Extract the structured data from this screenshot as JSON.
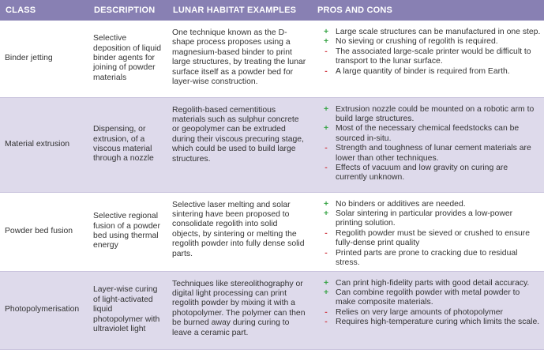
{
  "table": {
    "header": [
      "CLASS",
      "DESCRIPTION",
      "LUNAR HABITAT EXAMPLES",
      "PROS AND CONS"
    ],
    "rows": [
      {
        "class": "Binder jetting",
        "description": "Selective deposition of liquid binder agents for joining of powder materials",
        "examples": "One technique known as the D-shape process proposes using a magnesium-based binder to print large structures, by treating the lunar surface itself as a powder bed for layer-wise construction.",
        "pros_cons": [
          {
            "sign": "+",
            "text": "Large scale structures can be manufactured in one step."
          },
          {
            "sign": "+",
            "text": "No sieving or crushing of regolith is required."
          },
          {
            "sign": "-",
            "text": "The associated large-scale printer would be difficult to transport to the lunar surface."
          },
          {
            "sign": "-",
            "text": "A large quantity of binder is required from Earth."
          }
        ]
      },
      {
        "class": "Material extrusion",
        "description": "Dispensing, or extrusion, of a viscous material through a nozzle",
        "examples": "Regolith-based cementitious materials such as sulphur concrete or geopolymer can be extruded during their viscous precuring stage, which could be used to build large structures.",
        "pros_cons": [
          {
            "sign": "+",
            "text": "Extrusion nozzle could be mounted on a robotic arm to build large structures."
          },
          {
            "sign": "+",
            "text": "Most of the necessary chemical feedstocks can be sourced in-situ."
          },
          {
            "sign": "-",
            "text": "Strength and toughness of lunar cement materials are lower than other techniques."
          },
          {
            "sign": "-",
            "text": "Effects of vacuum and low gravity on curing are currently unknown."
          }
        ]
      },
      {
        "class": "Powder bed fusion",
        "description": "Selective regional fusion of a powder bed using thermal energy",
        "examples": "Selective laser melting and solar sintering have been proposed to consolidate regolith into solid objects, by sintering or melting the regolith powder into fully dense solid parts.",
        "pros_cons": [
          {
            "sign": "+",
            "text": "No binders or additives are needed."
          },
          {
            "sign": "+",
            "text": "Solar sintering in particular provides a low-power printing solution."
          },
          {
            "sign": "-",
            "text": "Regolith powder must be sieved or crushed to ensure fully-dense print quality"
          },
          {
            "sign": "-",
            "text": "Printed parts are prone to cracking due to residual stress."
          }
        ]
      },
      {
        "class": "Photopolymerisation",
        "description": "Layer-wise curing of light-activated liquid photopolymer with ultraviolet light",
        "examples": "Techniques like stereolithography or digital light processing can print regolith powder by mixing it with a photopolymer. The polymer can then be burned away during curing to leave a ceramic part.",
        "pros_cons": [
          {
            "sign": "+",
            "text": "Can print high-fidelity parts with good detail accuracy."
          },
          {
            "sign": "+",
            "text": "Can combine regolith powder with metal powder to make composite materials."
          },
          {
            "sign": "-",
            "text": "Relies on very large amounts of photopolymer"
          },
          {
            "sign": "-",
            "text": "Requires high-temperature curing which limits the scale."
          }
        ]
      }
    ]
  }
}
